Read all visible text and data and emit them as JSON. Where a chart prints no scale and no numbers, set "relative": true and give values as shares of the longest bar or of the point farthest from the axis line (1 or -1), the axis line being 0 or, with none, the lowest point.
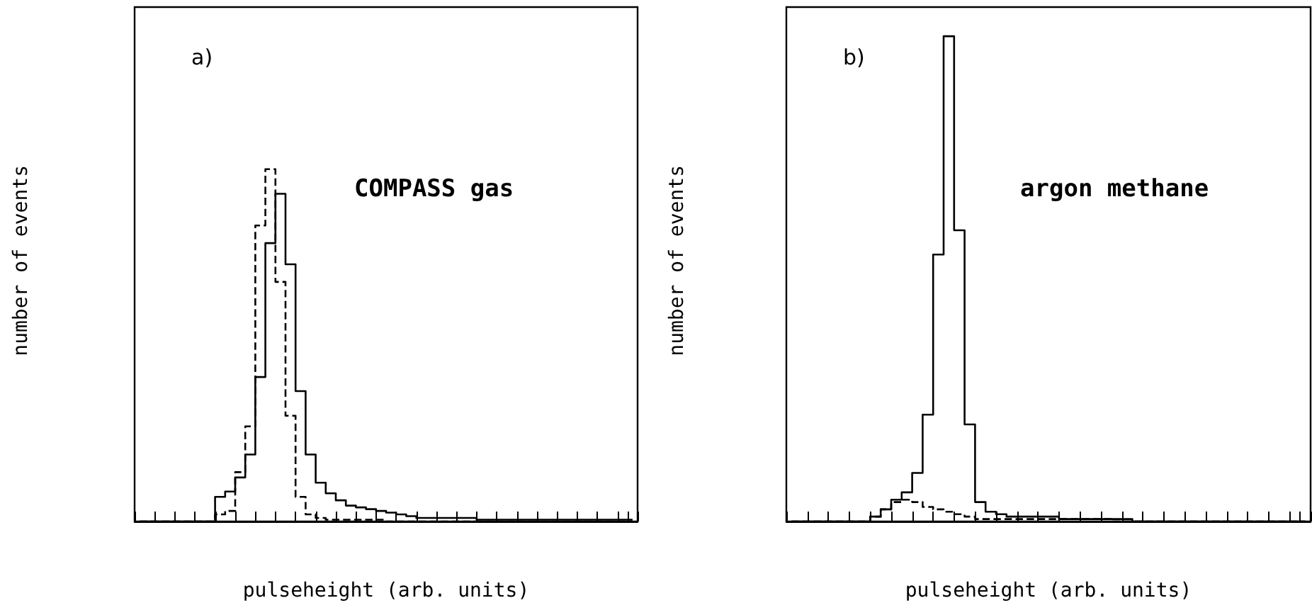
{
  "chart_data": [
    {
      "type": "step",
      "relative": true,
      "xlabel": "pulseheight (arb. units)",
      "ylabel": "number of events",
      "annotations": [
        "a)",
        "COMPASS gas"
      ],
      "grid": false,
      "categories": [
        null,
        null,
        null,
        null,
        null,
        null,
        null,
        null,
        null,
        null,
        null,
        null,
        null,
        null,
        null,
        null,
        null,
        null,
        null,
        null,
        null,
        null,
        null,
        null,
        null,
        null,
        null,
        null,
        null,
        null,
        null,
        null,
        null,
        null,
        null,
        null,
        null,
        null,
        null,
        null,
        null,
        null,
        null,
        null,
        null,
        null,
        null,
        null,
        null,
        null
      ],
      "series": [
        {
          "color": "#000000",
          "line_style": "solid",
          "values": [
            0,
            0,
            0,
            0,
            0,
            0,
            0,
            0,
            0.07,
            0.085,
            0.125,
            0.19,
            0.41,
            0.79,
            0.93,
            0.73,
            0.37,
            0.19,
            0.11,
            0.08,
            0.06,
            0.045,
            0.04,
            0.035,
            0.03,
            0.025,
            0.02,
            0.015,
            0.01,
            0.01,
            0.01,
            0.01,
            0.01,
            0.01,
            0.005,
            0.005,
            0.005,
            0.005,
            0.005,
            0.005,
            0.005,
            0.005,
            0.005,
            0.005,
            0.005,
            0.005,
            0.005,
            0.005,
            0.005,
            0.005
          ]
        },
        {
          "color": "#000000",
          "line_style": "dashed",
          "values": [
            0,
            0,
            0,
            0,
            0,
            0,
            0,
            0,
            0.02,
            0.03,
            0.14,
            0.27,
            0.84,
            1,
            0.68,
            0.3,
            0.07,
            0.02,
            0.01,
            0.005,
            0.005,
            0.005,
            0.005,
            0.005,
            0.005,
            0,
            0,
            0,
            0,
            0,
            0,
            0,
            0,
            0,
            0,
            0,
            0,
            0,
            0,
            0,
            0,
            0,
            0,
            0,
            0,
            0,
            0,
            0,
            0,
            0
          ]
        }
      ]
    },
    {
      "type": "step",
      "relative": true,
      "xlabel": "pulseheight (arb. units)",
      "ylabel": "number of events",
      "annotations": [
        "b)",
        "argon methane"
      ],
      "grid": false,
      "categories": [
        null,
        null,
        null,
        null,
        null,
        null,
        null,
        null,
        null,
        null,
        null,
        null,
        null,
        null,
        null,
        null,
        null,
        null,
        null,
        null,
        null,
        null,
        null,
        null,
        null,
        null,
        null,
        null,
        null,
        null,
        null,
        null,
        null,
        null,
        null,
        null,
        null,
        null,
        null,
        null,
        null,
        null,
        null,
        null,
        null,
        null,
        null,
        null,
        null,
        null
      ],
      "series": [
        {
          "color": "#000000",
          "line_style": "solid",
          "values": [
            0,
            0,
            0,
            0,
            0,
            0,
            0,
            0,
            0.01,
            0.025,
            0.045,
            0.06,
            0.1,
            0.22,
            0.55,
            1,
            0.6,
            0.2,
            0.04,
            0.02,
            0.015,
            0.01,
            0.01,
            0.01,
            0.01,
            0.01,
            0.005,
            0.005,
            0.005,
            0.005,
            0.005,
            0.005,
            0.005,
            0,
            0,
            0,
            0,
            0,
            0,
            0,
            0,
            0,
            0,
            0,
            0,
            0,
            0,
            0,
            0,
            0
          ]
        },
        {
          "color": "#000000",
          "line_style": "dashed",
          "values": [
            0,
            0,
            0,
            0,
            0,
            0,
            0,
            0,
            0.01,
            0.025,
            0.04,
            0.045,
            0.04,
            0.03,
            0.025,
            0.02,
            0.015,
            0.01,
            0.005,
            0.005,
            0.005,
            0.005,
            0.005,
            0.005,
            0.005,
            0.005,
            0.005,
            0.005,
            0.005,
            0.005,
            0.005,
            0,
            0,
            0,
            0,
            0,
            0,
            0,
            0,
            0,
            0,
            0,
            0,
            0,
            0,
            0,
            0,
            0,
            0,
            0
          ]
        }
      ]
    }
  ]
}
